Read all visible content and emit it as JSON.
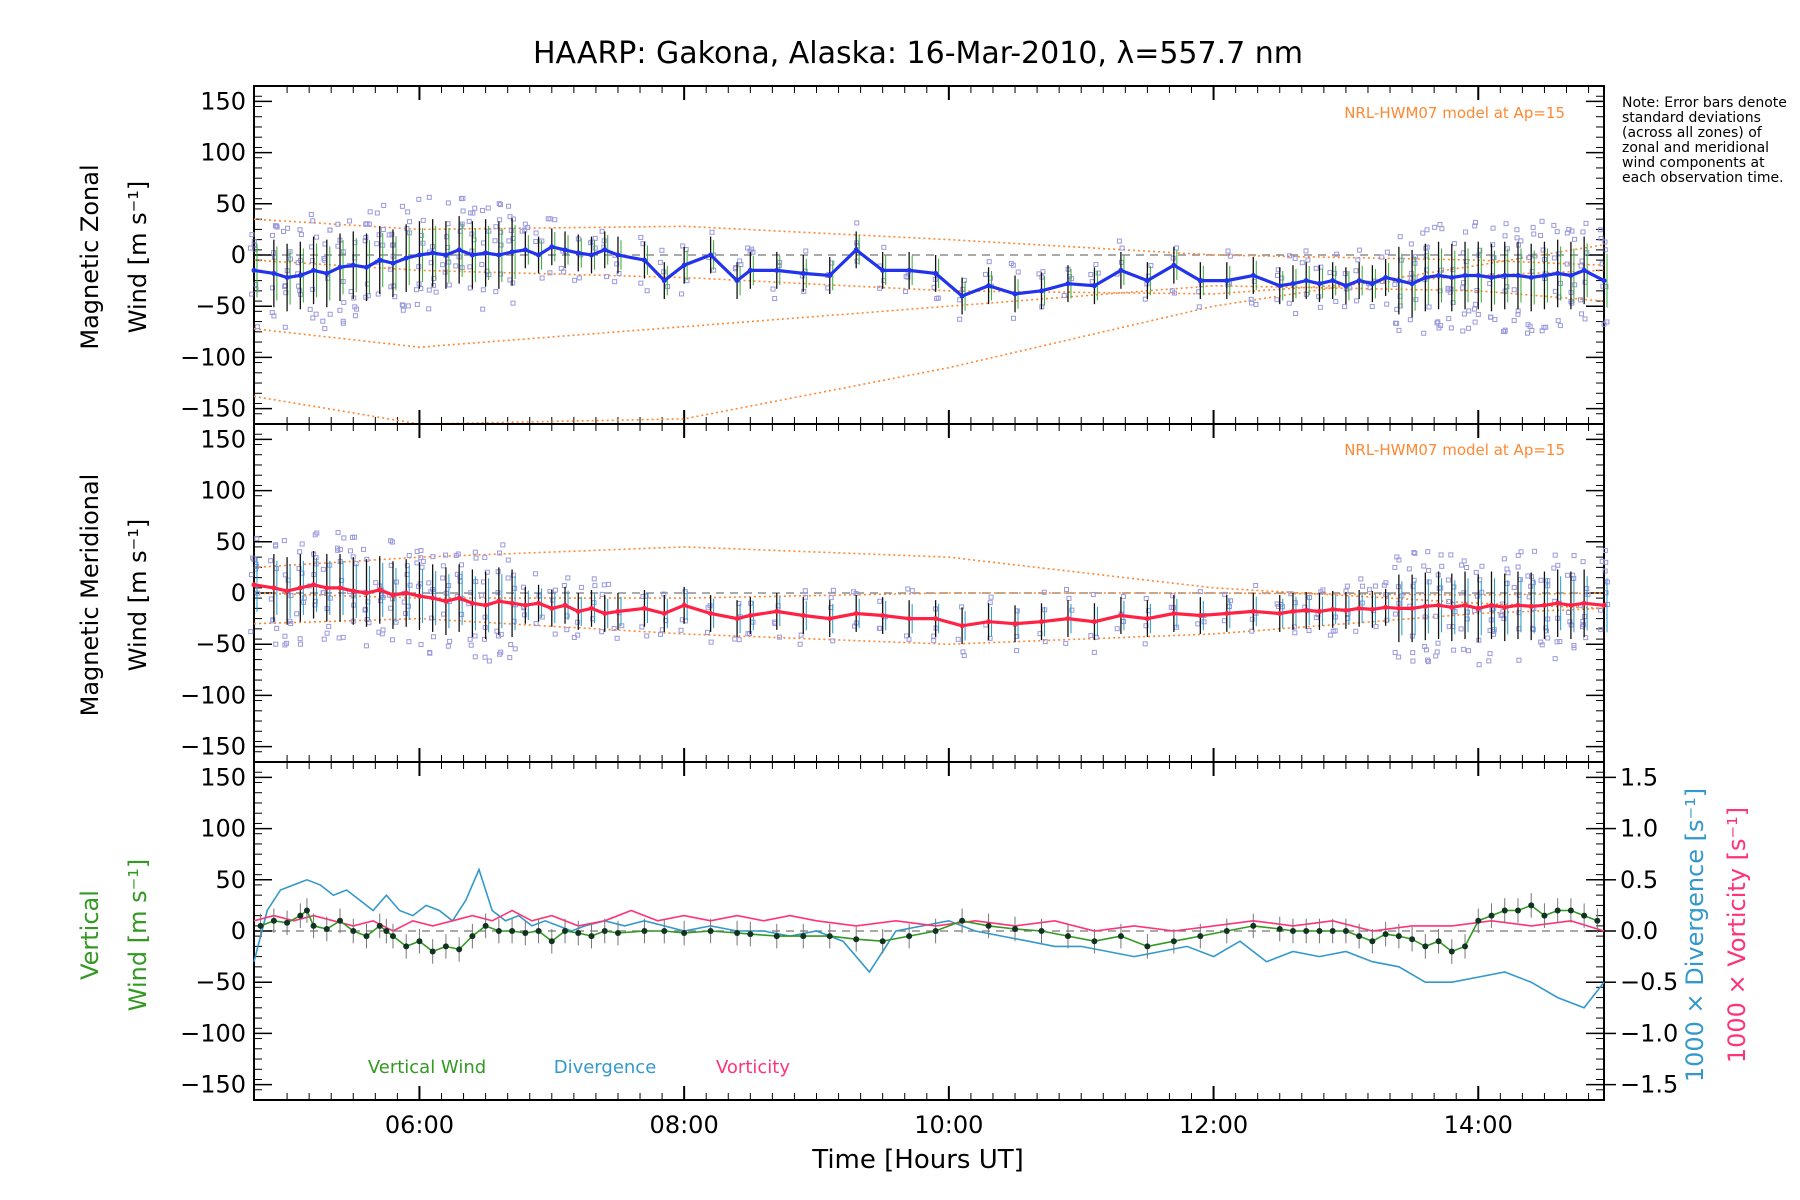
{
  "title": "HAARP: Gakona,  Alaska: 16-Mar-2010, λ=557.7 nm",
  "note": "Note: Error bars denote standard deviations (across all zones) of zonal and meridional wind components at each observation time.",
  "xaxis": {
    "label": "Time [Hours UT]",
    "range_hours": [
      4.75,
      14.95
    ],
    "ticks": [
      {
        "value": 6,
        "label": "06:00"
      },
      {
        "value": 8,
        "label": "08:00"
      },
      {
        "value": 10,
        "label": "10:00"
      },
      {
        "value": 12,
        "label": "12:00"
      },
      {
        "value": 14,
        "label": "14:00"
      }
    ]
  },
  "colors": {
    "zonal": "#2233ee",
    "meridional": "#ff2244",
    "vertical": "#339922",
    "divergence": "#3399cc",
    "vorticity": "#ff3377",
    "model": "#ff8833",
    "zone_points": "#9999dd",
    "error_bar": "#111111"
  },
  "chart_data": [
    {
      "type": "line",
      "panel": "zonal",
      "ylabel_line1": "Magnetic Zonal",
      "ylabel_line2": "Wind [m s⁻¹]",
      "ylim": [
        -165,
        165
      ],
      "yticks": [
        -150,
        -100,
        -50,
        0,
        50,
        100,
        150
      ],
      "model_label": "NRL-HWM07 model at Ap=15",
      "series": [
        {
          "x": [
            4.75,
            4.9,
            5.0,
            5.1,
            5.2,
            5.3,
            5.4,
            5.5,
            5.6,
            5.7,
            5.8,
            5.9,
            6.0,
            6.1,
            6.2,
            6.3,
            6.4,
            6.5,
            6.6,
            6.7,
            6.8,
            6.9,
            7.0,
            7.1,
            7.2,
            7.3,
            7.4,
            7.5,
            7.7,
            7.85,
            8.0,
            8.2,
            8.4,
            8.5,
            8.7,
            8.9,
            9.1,
            9.3,
            9.5,
            9.7,
            9.9,
            10.1,
            10.3,
            10.5,
            10.7,
            10.9,
            11.1,
            11.3,
            11.5,
            11.7,
            11.9,
            12.1,
            12.3,
            12.5,
            12.6,
            12.7,
            12.8,
            12.9,
            13.0,
            13.1,
            13.2,
            13.3,
            13.4,
            13.5,
            13.6,
            13.7,
            13.8,
            13.9,
            14.0,
            14.1,
            14.2,
            14.3,
            14.4,
            14.5,
            14.6,
            14.7,
            14.8,
            14.95
          ],
          "y": [
            -15,
            -18,
            -22,
            -20,
            -15,
            -18,
            -12,
            -10,
            -12,
            -5,
            -8,
            -3,
            0,
            2,
            0,
            5,
            0,
            2,
            0,
            3,
            5,
            0,
            8,
            5,
            2,
            0,
            5,
            0,
            -5,
            -25,
            -10,
            0,
            -25,
            -15,
            -15,
            -18,
            -20,
            5,
            -15,
            -15,
            -18,
            -40,
            -30,
            -38,
            -35,
            -28,
            -30,
            -15,
            -25,
            -10,
            -25,
            -25,
            -20,
            -30,
            -28,
            -25,
            -28,
            -25,
            -30,
            -25,
            -28,
            -22,
            -25,
            -28,
            -22,
            -20,
            -22,
            -20,
            -20,
            -22,
            -20,
            -20,
            -22,
            -20,
            -18,
            -20,
            -15,
            -25
          ]
        },
        {
          "model": true,
          "y_at_x": {
            "x": [
              4.75,
              6.0,
              8.0,
              10.0,
              12.0,
              14.0,
              14.95
            ],
            "y": [
              35,
              25,
              28,
              15,
              0,
              -5,
              -10
            ]
          }
        },
        {
          "model": true,
          "y_at_x": {
            "x": [
              4.75,
              6.0,
              8.0,
              10.0,
              12.0,
              14.0,
              14.95
            ],
            "y": [
              -72,
              -90,
              -70,
              -50,
              -30,
              -35,
              -45
            ]
          }
        },
        {
          "model": true,
          "y_at_x": {
            "x": [
              4.75,
              6.0,
              8.0,
              10.0,
              12.0,
              14.0,
              14.95
            ],
            "y": [
              -138,
              -165,
              -160,
              -110,
              -50,
              -10,
              10
            ]
          }
        },
        {
          "model": true,
          "y_at_x": {
            "x": [
              4.75,
              6.0,
              8.0,
              10.0,
              12.0,
              14.0,
              14.95
            ],
            "y": [
              -5,
              -15,
              -22,
              -35,
              -38,
              -20,
              -15
            ]
          }
        }
      ]
    },
    {
      "type": "line",
      "panel": "meridional",
      "ylabel_line1": "Magnetic Meridional",
      "ylabel_line2": "Wind [m s⁻¹]",
      "ylim": [
        -165,
        165
      ],
      "yticks": [
        -150,
        -100,
        -50,
        0,
        50,
        100,
        150
      ],
      "model_label": "NRL-HWM07 model at Ap=15",
      "series": [
        {
          "x": [
            4.75,
            4.9,
            5.0,
            5.1,
            5.2,
            5.3,
            5.4,
            5.5,
            5.6,
            5.7,
            5.8,
            5.9,
            6.0,
            6.1,
            6.2,
            6.3,
            6.4,
            6.5,
            6.6,
            6.7,
            6.8,
            6.9,
            7.0,
            7.1,
            7.2,
            7.3,
            7.4,
            7.5,
            7.7,
            7.85,
            8.0,
            8.2,
            8.4,
            8.5,
            8.7,
            8.9,
            9.1,
            9.3,
            9.5,
            9.7,
            9.9,
            10.1,
            10.3,
            10.5,
            10.7,
            10.9,
            11.1,
            11.3,
            11.5,
            11.7,
            11.9,
            12.1,
            12.3,
            12.5,
            12.6,
            12.7,
            12.8,
            12.9,
            13.0,
            13.1,
            13.2,
            13.3,
            13.4,
            13.5,
            13.6,
            13.7,
            13.8,
            13.9,
            14.0,
            14.1,
            14.2,
            14.3,
            14.4,
            14.5,
            14.6,
            14.7,
            14.8,
            14.95
          ],
          "y": [
            8,
            5,
            2,
            5,
            8,
            5,
            5,
            2,
            0,
            3,
            -2,
            0,
            -3,
            -5,
            -8,
            -5,
            -10,
            -12,
            -8,
            -10,
            -12,
            -10,
            -15,
            -12,
            -18,
            -15,
            -20,
            -18,
            -15,
            -20,
            -12,
            -20,
            -25,
            -22,
            -18,
            -22,
            -25,
            -20,
            -22,
            -25,
            -25,
            -32,
            -28,
            -30,
            -28,
            -25,
            -28,
            -22,
            -25,
            -20,
            -22,
            -20,
            -18,
            -20,
            -18,
            -17,
            -18,
            -16,
            -17,
            -15,
            -16,
            -14,
            -15,
            -15,
            -13,
            -12,
            -14,
            -12,
            -15,
            -12,
            -14,
            -12,
            -13,
            -12,
            -10,
            -12,
            -10,
            -12
          ]
        },
        {
          "model": true,
          "y_at_x": {
            "x": [
              4.75,
              6.0,
              8.0,
              10.0,
              12.0,
              14.0,
              14.95
            ],
            "y": [
              25,
              35,
              45,
              35,
              5,
              -10,
              -15
            ]
          }
        },
        {
          "model": true,
          "y_at_x": {
            "x": [
              4.75,
              6.0,
              8.0,
              10.0,
              12.0,
              14.0,
              14.95
            ],
            "y": [
              -30,
              -25,
              -40,
              -50,
              -40,
              -20,
              -15
            ]
          }
        },
        {
          "model": true,
          "y_at_x": {
            "x": [
              4.75,
              6.0,
              8.0,
              10.0,
              12.0,
              14.0,
              14.95
            ],
            "y": [
              0,
              -5,
              -5,
              0,
              0,
              -2,
              0
            ]
          }
        }
      ]
    },
    {
      "type": "line",
      "panel": "vertical",
      "ylabel_line1": "Vertical",
      "ylabel_line2": "Wind [m s⁻¹]",
      "ylim": [
        -165,
        165
      ],
      "yticks": [
        -150,
        -100,
        -50,
        0,
        50,
        100,
        150
      ],
      "y2_divergence_label": "1000 × Divergence [s⁻¹]",
      "y2_vorticity_label": "1000 × Vorticity [s⁻¹]",
      "y2lim": [
        -1.65,
        1.65
      ],
      "y2ticks": [
        -1.5,
        -1.0,
        -0.5,
        0.0,
        0.5,
        1.0,
        1.5
      ],
      "legend": [
        "Vertical Wind",
        "Divergence",
        "Vorticity"
      ],
      "series": [
        {
          "name": "Vertical Wind",
          "x": [
            4.8,
            4.9,
            5.0,
            5.1,
            5.15,
            5.2,
            5.3,
            5.4,
            5.5,
            5.6,
            5.7,
            5.75,
            5.8,
            5.9,
            6.0,
            6.1,
            6.2,
            6.3,
            6.4,
            6.5,
            6.6,
            6.7,
            6.8,
            6.9,
            7.0,
            7.1,
            7.2,
            7.3,
            7.4,
            7.5,
            7.7,
            7.85,
            8.0,
            8.2,
            8.4,
            8.5,
            8.7,
            8.9,
            9.1,
            9.3,
            9.5,
            9.7,
            9.9,
            10.1,
            10.3,
            10.5,
            10.7,
            10.9,
            11.1,
            11.3,
            11.5,
            11.7,
            11.9,
            12.1,
            12.3,
            12.5,
            12.6,
            12.7,
            12.8,
            12.9,
            13.0,
            13.1,
            13.2,
            13.3,
            13.4,
            13.5,
            13.6,
            13.7,
            13.8,
            13.9,
            14.0,
            14.1,
            14.2,
            14.3,
            14.4,
            14.5,
            14.6,
            14.7,
            14.8,
            14.9
          ],
          "y": [
            5,
            10,
            8,
            15,
            20,
            5,
            2,
            10,
            0,
            -5,
            5,
            0,
            -5,
            -15,
            -10,
            -20,
            -15,
            -18,
            -5,
            5,
            0,
            0,
            -2,
            0,
            -10,
            0,
            -2,
            -5,
            0,
            -2,
            0,
            0,
            -2,
            0,
            -2,
            -3,
            -5,
            -5,
            -5,
            -8,
            -10,
            -5,
            0,
            10,
            5,
            2,
            0,
            -5,
            -10,
            -5,
            -15,
            -10,
            -5,
            0,
            5,
            2,
            0,
            0,
            0,
            0,
            0,
            -5,
            -10,
            -3,
            -5,
            -8,
            -15,
            -10,
            -20,
            -15,
            10,
            15,
            20,
            20,
            25,
            15,
            20,
            20,
            15,
            10
          ]
        },
        {
          "name": "Divergence",
          "axis": "right",
          "x": [
            4.75,
            4.85,
            4.95,
            5.05,
            5.15,
            5.25,
            5.35,
            5.45,
            5.55,
            5.65,
            5.75,
            5.85,
            5.95,
            6.05,
            6.15,
            6.25,
            6.35,
            6.45,
            6.55,
            6.65,
            6.75,
            6.85,
            6.95,
            7.05,
            7.15,
            7.25,
            7.4,
            7.55,
            7.7,
            7.85,
            8.0,
            8.2,
            8.4,
            8.6,
            8.8,
            9.0,
            9.2,
            9.4,
            9.6,
            9.8,
            10.0,
            10.2,
            10.4,
            10.6,
            10.8,
            11.0,
            11.2,
            11.4,
            11.6,
            11.8,
            12.0,
            12.2,
            12.4,
            12.6,
            12.8,
            13.0,
            13.2,
            13.4,
            13.6,
            13.8,
            14.0,
            14.2,
            14.4,
            14.6,
            14.8,
            14.95
          ],
          "y": [
            -0.3,
            0.2,
            0.4,
            0.45,
            0.5,
            0.45,
            0.35,
            0.4,
            0.3,
            0.2,
            0.35,
            0.2,
            0.15,
            0.25,
            0.2,
            0.1,
            0.3,
            0.6,
            0.2,
            0.1,
            0.15,
            0.05,
            0.1,
            0.05,
            0.0,
            0.05,
            0.1,
            0.05,
            0.1,
            0.05,
            0.0,
            0.05,
            0.0,
            0.0,
            -0.05,
            0.0,
            -0.1,
            -0.4,
            0.0,
            0.05,
            0.1,
            0.0,
            -0.05,
            -0.1,
            -0.15,
            -0.15,
            -0.2,
            -0.25,
            -0.2,
            -0.15,
            -0.25,
            -0.1,
            -0.3,
            -0.2,
            -0.25,
            -0.2,
            -0.3,
            -0.35,
            -0.5,
            -0.5,
            -0.45,
            -0.4,
            -0.5,
            -0.65,
            -0.75,
            -0.5
          ]
        },
        {
          "name": "Vorticity",
          "axis": "right",
          "x": [
            4.75,
            4.9,
            5.05,
            5.2,
            5.35,
            5.5,
            5.65,
            5.8,
            5.95,
            6.1,
            6.25,
            6.4,
            6.55,
            6.7,
            6.85,
            7.0,
            7.2,
            7.4,
            7.6,
            7.8,
            8.0,
            8.2,
            8.4,
            8.6,
            8.8,
            9.0,
            9.3,
            9.6,
            9.9,
            10.2,
            10.5,
            10.8,
            11.1,
            11.4,
            11.7,
            12.0,
            12.3,
            12.6,
            12.9,
            13.2,
            13.5,
            13.8,
            14.1,
            14.4,
            14.7,
            14.95
          ],
          "y": [
            0.1,
            0.15,
            0.1,
            0.15,
            0.1,
            0.05,
            0.1,
            0.0,
            0.1,
            0.05,
            0.1,
            0.15,
            0.1,
            0.2,
            0.1,
            0.15,
            0.05,
            0.1,
            0.2,
            0.1,
            0.15,
            0.1,
            0.15,
            0.1,
            0.15,
            0.1,
            0.05,
            0.1,
            0.05,
            0.1,
            0.05,
            0.1,
            0.0,
            0.05,
            0.0,
            0.05,
            0.1,
            0.05,
            0.1,
            0.0,
            0.05,
            0.05,
            0.1,
            0.05,
            0.1,
            0.0
          ]
        }
      ]
    }
  ]
}
